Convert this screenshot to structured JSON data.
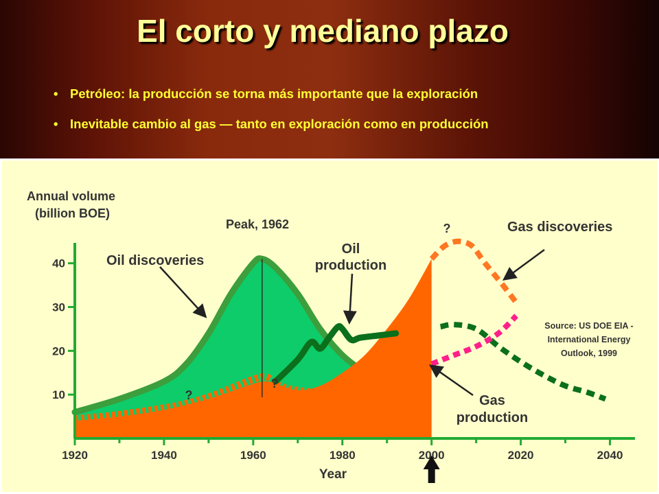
{
  "slide": {
    "title": "El corto y mediano plazo",
    "bullets": [
      "Petróleo: la producción se torna más importante que la exploración",
      "Inevitable cambio al gas — tanto en exploración como en producción"
    ]
  },
  "colors": {
    "oil_discoveries": "#0ecc6a",
    "oil_discoveries_outline": "#3c9e3c",
    "oil_production": "#0b6f1c",
    "gas_discoveries": "#ff7722",
    "gas_production_area": "#ff6600",
    "gas_production_forecast": "#ff1f8a",
    "axis": "#22aa33",
    "chart_background": "#ffffcc"
  },
  "chart_data": {
    "type": "area",
    "ylabel": [
      "Annual volume",
      "(billion BOE)"
    ],
    "xlabel": "Year",
    "xlim": [
      1920,
      2045
    ],
    "ylim": [
      0,
      47
    ],
    "x_ticks": [
      1920,
      1940,
      1960,
      1980,
      2000,
      2020,
      2040
    ],
    "y_ticks": [
      10,
      20,
      30,
      40
    ],
    "source_note": [
      "Source: US DOE EIA -",
      "International Energy",
      "Outlook, 1999"
    ],
    "annotations": [
      {
        "text": "Peak, 1962",
        "x": 1962
      },
      {
        "text": "Oil discoveries"
      },
      {
        "text": [
          "Oil",
          "production"
        ]
      },
      {
        "text": "Gas discoveries"
      },
      {
        "text": [
          "Gas",
          "production"
        ]
      },
      {
        "text": "?"
      }
    ],
    "marker_year": 2000,
    "series": [
      {
        "name": "Oil discoveries",
        "style": "filled-area",
        "x": [
          1920,
          1930,
          1940,
          1945,
          1950,
          1955,
          1960,
          1962,
          1965,
          1970,
          1975,
          1980,
          1985,
          1990,
          1995
        ],
        "y": [
          6,
          9,
          13,
          17,
          24,
          33,
          40,
          41,
          39,
          33,
          25,
          19,
          15,
          11,
          8
        ]
      },
      {
        "name": "Oil production",
        "style": "solid-line",
        "x": [
          1965,
          1970,
          1973,
          1975,
          1977,
          1979,
          1980,
          1982,
          1984,
          1988,
          1992
        ],
        "y": [
          13,
          18,
          22,
          20.5,
          23,
          25.5,
          25,
          22.5,
          23,
          23.5,
          24
        ]
      },
      {
        "name": "Oil production forecast",
        "style": "dashed",
        "x": [
          2002,
          2005,
          2010,
          2015,
          2020,
          2025,
          2030,
          2035,
          2039
        ],
        "y": [
          25.5,
          26,
          25,
          21,
          17.5,
          14.5,
          12,
          10.5,
          9
        ]
      },
      {
        "name": "Oil discoveries (estimated)",
        "style": "dotted-area-edge",
        "x": [
          1920,
          1930,
          1940,
          1945,
          1950,
          1955,
          1960,
          1963,
          1966,
          1970,
          1975
        ],
        "y": [
          4.5,
          5.5,
          7,
          8,
          9.5,
          11.5,
          13.5,
          14,
          12,
          11,
          10.5
        ]
      },
      {
        "name": "Gas production",
        "style": "filled-area",
        "x": [
          1920,
          1930,
          1940,
          1950,
          1960,
          1963,
          1965,
          1970,
          1975,
          1980,
          1985,
          1990,
          1995,
          2000
        ],
        "y": [
          4,
          5,
          6.5,
          9,
          12.5,
          13,
          12.5,
          11,
          12,
          15,
          19,
          25,
          32,
          41
        ]
      },
      {
        "name": "Gas discoveries",
        "style": "dashed",
        "x": [
          2000,
          2003,
          2006,
          2009,
          2012,
          2016,
          2019
        ],
        "y": [
          41,
          44,
          45,
          44,
          40,
          35,
          31
        ]
      },
      {
        "name": "Gas production forecast",
        "style": "dashed",
        "x": [
          2000,
          2005,
          2010,
          2015,
          2019
        ],
        "y": [
          17,
          19,
          21,
          24,
          28
        ]
      }
    ]
  }
}
